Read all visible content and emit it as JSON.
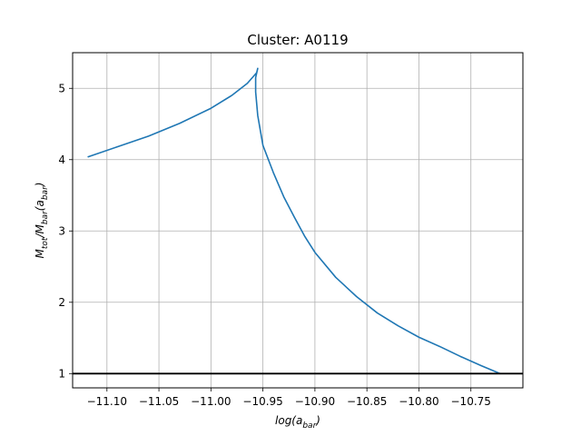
{
  "chart_data": {
    "type": "line",
    "title": "Cluster: A0119",
    "xlabel": {
      "base": "log(a",
      "sub": "bar",
      "close": ")"
    },
    "ylabel": {
      "p1": "M",
      "s1": "tot",
      "p2": "/M",
      "s2": "bar",
      "p3": "(a",
      "s3": "bar",
      "p4": ")"
    },
    "xlim": [
      -11.133,
      -10.7
    ],
    "ylim": [
      0.8,
      5.5
    ],
    "xticks": [
      -11.1,
      -11.05,
      -11.0,
      -10.95,
      -10.9,
      -10.85,
      -10.8,
      -10.75
    ],
    "xtick_labels": [
      "−11.10",
      "−11.05",
      "−11.00",
      "−10.95",
      "−10.90",
      "−10.85",
      "−10.80",
      "−10.75"
    ],
    "yticks": [
      1,
      2,
      3,
      4,
      5
    ],
    "ytick_labels": [
      "1",
      "2",
      "3",
      "4",
      "5"
    ],
    "grid": true,
    "series": [
      {
        "color": "#1f77b4",
        "x": [
          -11.118,
          -11.09,
          -11.06,
          -11.03,
          -11.0,
          -10.98,
          -10.965,
          -10.956,
          -10.955,
          -10.957,
          -10.957,
          -10.955,
          -10.95,
          -10.94,
          -10.93,
          -10.92,
          -10.91,
          -10.9,
          -10.88,
          -10.86,
          -10.84,
          -10.82,
          -10.8,
          -10.78,
          -10.76,
          -10.74,
          -10.722
        ],
        "y": [
          4.04,
          4.18,
          4.33,
          4.51,
          4.72,
          4.9,
          5.07,
          5.22,
          5.28,
          5.15,
          4.95,
          4.62,
          4.2,
          3.82,
          3.48,
          3.2,
          2.93,
          2.7,
          2.35,
          2.08,
          1.85,
          1.67,
          1.51,
          1.38,
          1.24,
          1.11,
          1.0
        ]
      }
    ],
    "hlines": [
      {
        "y": 1,
        "color": "#000000"
      }
    ]
  }
}
